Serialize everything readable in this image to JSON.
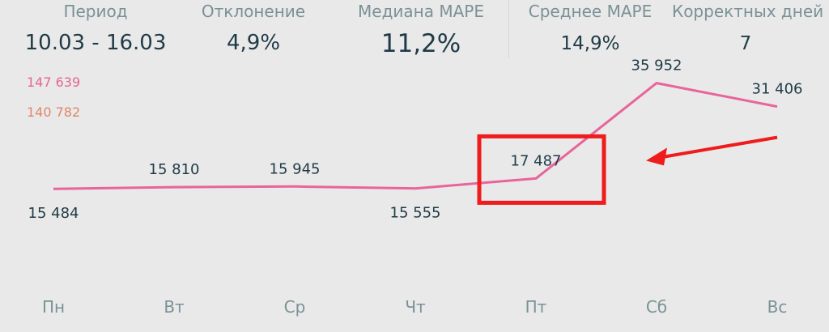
{
  "kpis": [
    {
      "label": "Период",
      "value": "10.03 - 16.03"
    },
    {
      "label": "Отклонение",
      "value": "4,9%"
    },
    {
      "label": "Медиана MAPE",
      "value": "11,2%"
    },
    {
      "label": "Среднее MAPE",
      "value": "14,9%"
    },
    {
      "label": "Корректных дней",
      "value": "7"
    }
  ],
  "totals": [
    {
      "value": "147 639",
      "color": "#e8648f"
    },
    {
      "value": "140 782",
      "color": "#e0876a"
    }
  ],
  "colors": {
    "line": "#e9649a",
    "highlight": "#ee1c1c",
    "text_dark": "#1f3b47",
    "text_muted": "#7a9196"
  },
  "chart_data": {
    "type": "line",
    "categories": [
      "Пн",
      "Вт",
      "Ср",
      "Чт",
      "Пт",
      "Сб",
      "Вс"
    ],
    "series": [
      {
        "values": [
          15484,
          15810,
          15945,
          15555,
          17487,
          35952,
          31406
        ]
      }
    ],
    "data_labels": [
      "15 484",
      "15 810",
      "15 945",
      "15 555",
      "17 487",
      "35 952",
      "31 406"
    ],
    "ylim": [
      0,
      42000
    ],
    "grid": false,
    "annotation": {
      "highlight_category": "Пт",
      "arrow_from_category": "Вс"
    }
  }
}
